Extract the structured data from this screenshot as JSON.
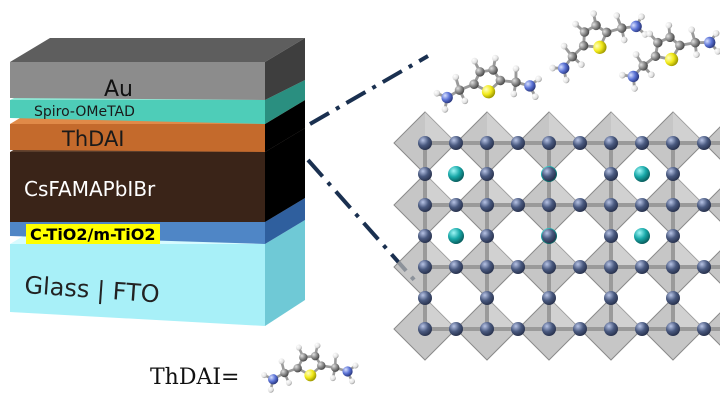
{
  "stack": {
    "layers": [
      {
        "key": "au",
        "label": "Au",
        "color": "#8c8c8c"
      },
      {
        "key": "spiro",
        "label": "Spiro-OMeTAD",
        "color": "#4ecdb8"
      },
      {
        "key": "thdai",
        "label": "ThDAI",
        "color": "#c46a2c"
      },
      {
        "key": "perovskite",
        "label": "CsFAMAPbIBr",
        "color": "#3a2418"
      },
      {
        "key": "tio2",
        "label": "C-TiO2/m-TiO2",
        "color": "#4f86c6",
        "highlight": "#ffff00"
      },
      {
        "key": "glass",
        "label": "Glass | FTO",
        "color": "#a8f0f8"
      }
    ]
  },
  "formula": {
    "label": "ThDAI="
  },
  "colors": {
    "octahedron": "#b0b0b0",
    "lead_atom": "#4a5a80",
    "a_cation": "#1aa8a8",
    "sulfur": "#f2ea1a",
    "nitrogen": "#5b73d6",
    "carbon": "#8a8a8a",
    "hydrogen": "#e8e8e8",
    "dash_line": "#1a3050"
  }
}
